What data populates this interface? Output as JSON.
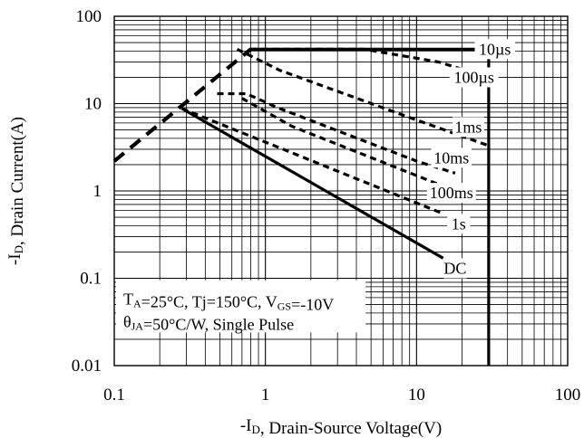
{
  "chart_data": {
    "type": "line",
    "title": "",
    "xlabel": "-I D, Drain-Source Voltage(V)",
    "xlabel_parts": {
      "pre": "-I",
      "sub": "D",
      "post": ", Drain-Source Voltage(V)"
    },
    "ylabel_parts": {
      "pre": "-I",
      "sub": "D",
      "post": ", Drain Current(A)"
    },
    "x_scale": "log",
    "y_scale": "log",
    "xlim": [
      0.1,
      100
    ],
    "ylim": [
      0.01,
      100
    ],
    "grid": true,
    "x_ticks": [
      {
        "value": 0.1,
        "label": "0.1"
      },
      {
        "value": 1,
        "label": "1"
      },
      {
        "value": 10,
        "label": "10"
      },
      {
        "value": 100,
        "label": "100"
      }
    ],
    "y_ticks": [
      {
        "value": 0.01,
        "label": "0.01"
      },
      {
        "value": 0.1,
        "label": "0.1"
      },
      {
        "value": 1,
        "label": "1"
      },
      {
        "value": 10,
        "label": "10"
      },
      {
        "value": 100,
        "label": "100"
      }
    ],
    "series": [
      {
        "name": "10µs",
        "style": "solid",
        "points": [
          [
            0.78,
            42
          ],
          [
            30,
            42
          ]
        ]
      },
      {
        "name": "100µs",
        "style": "dashed",
        "points": [
          [
            0.8,
            42
          ],
          [
            4.5,
            42
          ],
          [
            14,
            30
          ],
          [
            30,
            20
          ]
        ]
      },
      {
        "name": "1ms",
        "style": "dashed",
        "points": [
          [
            0.65,
            42
          ],
          [
            1.25,
            24
          ],
          [
            10,
            6.5
          ],
          [
            30,
            3.3
          ]
        ]
      },
      {
        "name": "10ms",
        "style": "dashed",
        "points": [
          [
            0.48,
            13
          ],
          [
            0.75,
            13
          ],
          [
            1.2,
            9
          ],
          [
            10,
            2.2
          ],
          [
            18,
            1.6
          ]
        ]
      },
      {
        "name": "100ms",
        "style": "dashed",
        "points": [
          [
            0.7,
            11.5
          ],
          [
            1.5,
            5.5
          ],
          [
            10,
            1.5
          ],
          [
            18,
            1.0
          ]
        ]
      },
      {
        "name": "1s",
        "style": "dashed",
        "points": [
          [
            0.28,
            8.8
          ],
          [
            15,
            0.55
          ]
        ]
      },
      {
        "name": "DC",
        "style": "solid",
        "points": [
          [
            0.28,
            8.8
          ],
          [
            15,
            0.17
          ]
        ]
      },
      {
        "name": "",
        "style": "dashed-bold",
        "points": [
          [
            0.1,
            2.2
          ],
          [
            0.8,
            42
          ]
        ]
      },
      {
        "name": "",
        "style": "solid",
        "points": [
          [
            30,
            42
          ],
          [
            30,
            0.01
          ]
        ]
      }
    ],
    "series_labels": [
      {
        "series": "10µs",
        "text": "10µs",
        "at": [
          33,
          42
        ]
      },
      {
        "series": "100µs",
        "text": "100µs",
        "at": [
          24,
          20
        ]
      },
      {
        "series": "1ms",
        "text": "1ms",
        "at": [
          22,
          5.4
        ]
      },
      {
        "series": "10ms",
        "text": "10ms",
        "at": [
          17,
          2.4
        ]
      },
      {
        "series": "100ms",
        "text": "100ms",
        "at": [
          17,
          0.95
        ]
      },
      {
        "series": "1s",
        "text": "1s",
        "at": [
          19,
          0.42
        ]
      },
      {
        "series": "DC",
        "text": "DC",
        "at": [
          18,
          0.13
        ]
      }
    ],
    "annotations": [
      {
        "id": "cond1",
        "parts": [
          {
            "t": "T"
          },
          {
            "t": "A",
            "sub": true
          },
          {
            "t": "=25°C, Tj=150°C, V"
          },
          {
            "t": "GS",
            "sub": true
          },
          {
            "t": "=-10V"
          }
        ]
      },
      {
        "id": "cond2",
        "parts": [
          {
            "t": "θ"
          },
          {
            "t": "JA",
            "sub": true
          },
          {
            "t": "=50°C/W, Single Pulse"
          }
        ]
      }
    ]
  }
}
